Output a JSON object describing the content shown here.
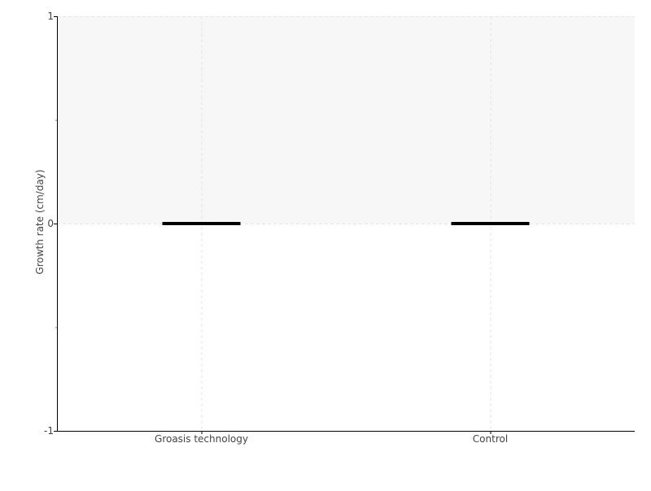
{
  "chart_data": {
    "type": "box",
    "categories": [
      "Groasis technology",
      "Control"
    ],
    "series": [
      {
        "values": [
          {
            "min": 0,
            "q1": 0,
            "median": 0,
            "q3": 0,
            "max": 0
          },
          {
            "min": 0,
            "q1": 0,
            "median": 0,
            "q3": 0,
            "max": 0
          }
        ]
      }
    ],
    "xlabel": "",
    "ylabel": "Growth rate (cm/day)",
    "ylim": [
      -1,
      1
    ],
    "yticks": [
      -1,
      0,
      1
    ],
    "ytick_labels": [
      "-1",
      "0",
      "1"
    ],
    "minor_yticks": [
      -0.5,
      0.5
    ],
    "shaded_band": [
      0,
      1
    ],
    "grid": true,
    "colors": {
      "box": "#000000",
      "band": "#f7f7f7",
      "grid": "#e6e6e6",
      "minor_tick": "#e06060",
      "axis": "#000000"
    }
  }
}
